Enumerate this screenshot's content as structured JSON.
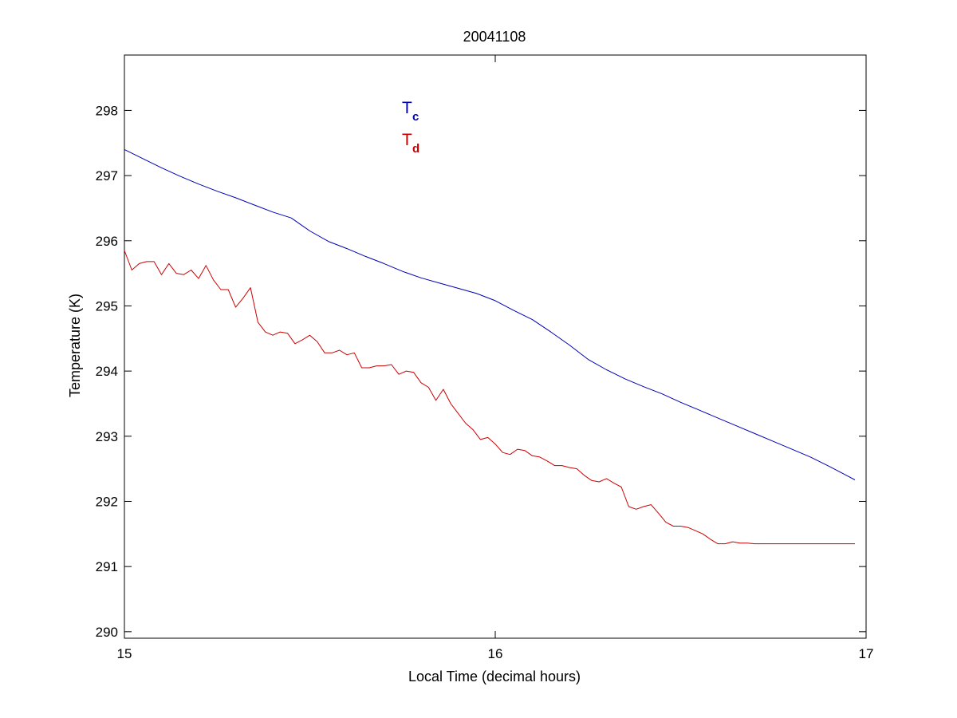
{
  "chart_data": {
    "type": "line",
    "title": "20041108",
    "xlabel": "Local Time (decimal hours)",
    "ylabel": "Temperature (K)",
    "xlim": [
      15,
      17
    ],
    "ylim": [
      289.9,
      298.85
    ],
    "xticks": [
      "15",
      "16",
      "17"
    ],
    "yticks": [
      "290",
      "291",
      "292",
      "293",
      "294",
      "295",
      "296",
      "297",
      "298"
    ],
    "grid": false,
    "legend_placement": "top-center",
    "series": [
      {
        "name_main": "T",
        "name_sub": "c",
        "color": "#0000b4",
        "x": [
          15.0,
          15.05,
          15.1,
          15.15,
          15.2,
          15.25,
          15.3,
          15.35,
          15.4,
          15.45,
          15.5,
          15.55,
          15.6,
          15.65,
          15.7,
          15.75,
          15.8,
          15.85,
          15.9,
          15.95,
          16.0,
          16.05,
          16.1,
          16.15,
          16.2,
          16.25,
          16.3,
          16.35,
          16.4,
          16.45,
          16.5,
          16.55,
          16.6,
          16.65,
          16.7,
          16.75,
          16.8,
          16.85,
          16.9,
          16.95,
          16.97
        ],
        "y": [
          297.4,
          297.26,
          297.12,
          296.99,
          296.87,
          296.76,
          296.66,
          296.55,
          296.44,
          296.35,
          296.15,
          295.99,
          295.88,
          295.76,
          295.65,
          295.53,
          295.43,
          295.35,
          295.27,
          295.19,
          295.08,
          294.93,
          294.79,
          294.6,
          294.4,
          294.18,
          294.02,
          293.88,
          293.76,
          293.65,
          293.52,
          293.4,
          293.28,
          293.16,
          293.04,
          292.92,
          292.8,
          292.68,
          292.54,
          292.39,
          292.33
        ]
      },
      {
        "name_main": "T",
        "name_sub": "d",
        "color": "#cc0000",
        "x": [
          15.0,
          15.02,
          15.04,
          15.06,
          15.08,
          15.1,
          15.12,
          15.14,
          15.16,
          15.18,
          15.2,
          15.22,
          15.24,
          15.26,
          15.28,
          15.3,
          15.32,
          15.34,
          15.36,
          15.38,
          15.4,
          15.42,
          15.44,
          15.46,
          15.48,
          15.5,
          15.52,
          15.54,
          15.56,
          15.58,
          15.6,
          15.62,
          15.64,
          15.66,
          15.68,
          15.7,
          15.72,
          15.74,
          15.76,
          15.78,
          15.8,
          15.82,
          15.84,
          15.86,
          15.88,
          15.9,
          15.92,
          15.94,
          15.96,
          15.98,
          16.0,
          16.02,
          16.04,
          16.06,
          16.08,
          16.1,
          16.12,
          16.14,
          16.16,
          16.18,
          16.2,
          16.22,
          16.24,
          16.26,
          16.28,
          16.3,
          16.32,
          16.34,
          16.36,
          16.38,
          16.4,
          16.42,
          16.44,
          16.46,
          16.48,
          16.5,
          16.52,
          16.54,
          16.56,
          16.58,
          16.6,
          16.62,
          16.64,
          16.66,
          16.68,
          16.7,
          16.72,
          16.74,
          16.76,
          16.78,
          16.8,
          16.82,
          16.84,
          16.86,
          16.88,
          16.9,
          16.92,
          16.94,
          16.96,
          16.97
        ],
        "y": [
          295.85,
          295.55,
          295.65,
          295.68,
          295.68,
          295.48,
          295.65,
          295.5,
          295.48,
          295.55,
          295.42,
          295.62,
          295.4,
          295.25,
          295.25,
          294.98,
          295.12,
          295.28,
          294.75,
          294.6,
          294.55,
          294.6,
          294.58,
          294.42,
          294.48,
          294.55,
          294.45,
          294.28,
          294.28,
          294.32,
          294.25,
          294.28,
          294.05,
          294.05,
          294.08,
          294.08,
          294.1,
          293.95,
          294.0,
          293.98,
          293.82,
          293.75,
          293.55,
          293.72,
          293.5,
          293.35,
          293.2,
          293.1,
          292.95,
          292.98,
          292.88,
          292.75,
          292.72,
          292.8,
          292.78,
          292.7,
          292.68,
          292.62,
          292.55,
          292.55,
          292.52,
          292.5,
          292.4,
          292.32,
          292.3,
          292.35,
          292.28,
          292.22,
          291.92,
          291.88,
          291.92,
          291.95,
          291.82,
          291.68,
          291.62,
          291.62,
          291.6,
          291.55,
          291.5,
          291.42,
          291.35,
          291.35,
          291.38,
          291.36,
          291.36,
          291.35,
          291.35,
          291.35,
          291.35,
          291.35,
          291.35,
          291.35,
          291.35,
          291.35,
          291.35,
          291.35,
          291.35,
          291.35,
          291.35,
          291.35
        ]
      }
    ]
  }
}
